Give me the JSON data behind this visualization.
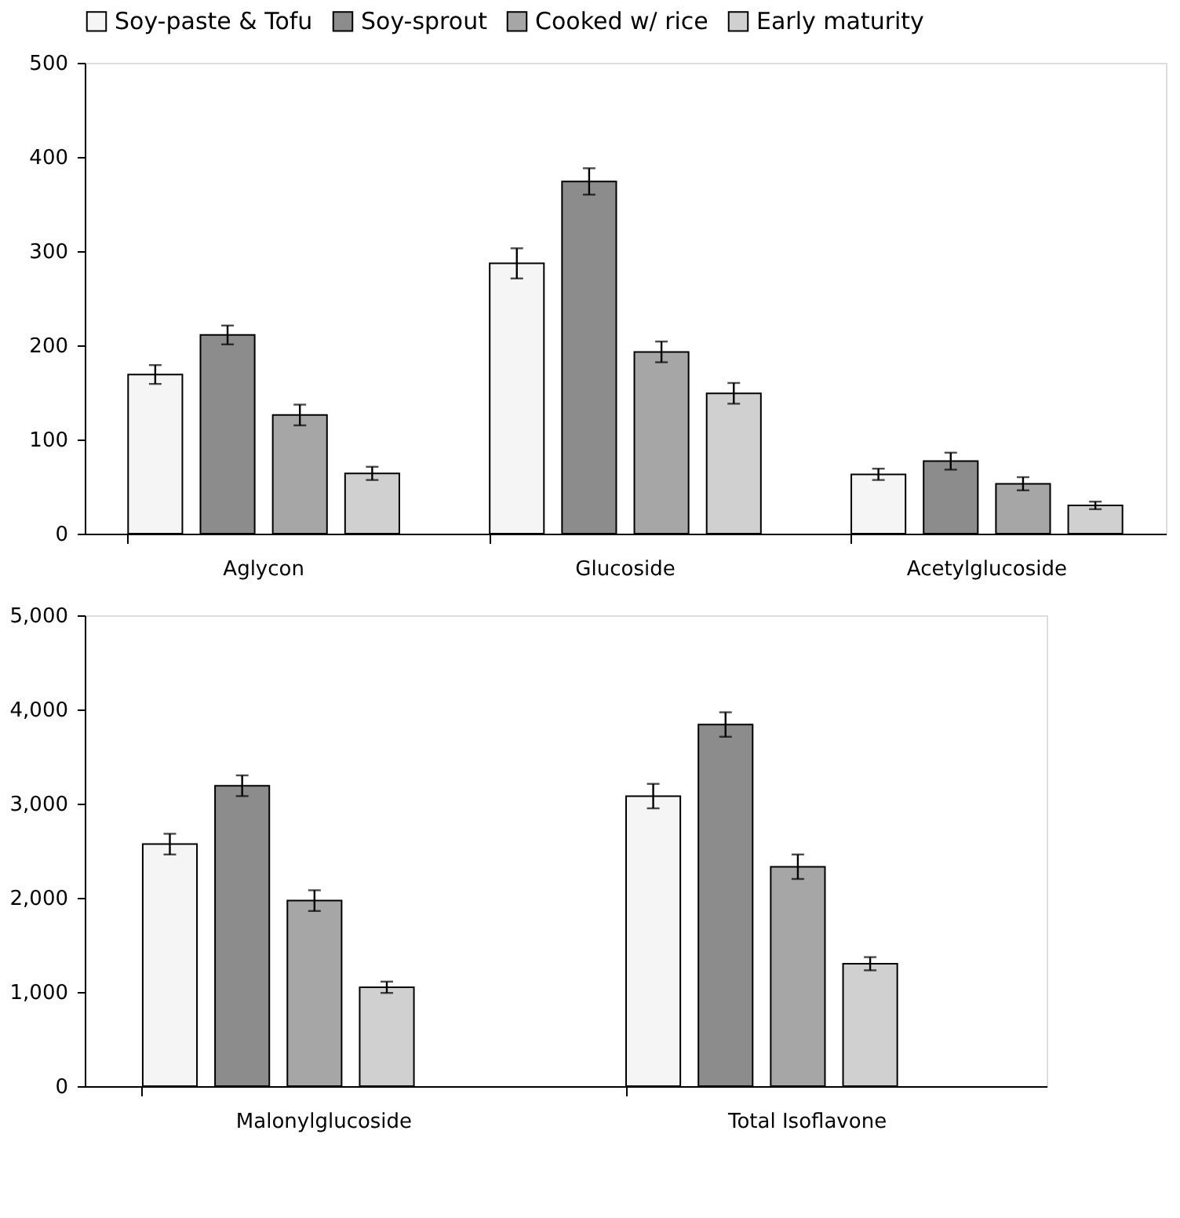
{
  "chart_data": [
    {
      "type": "bar",
      "categories": [
        "Aglycon",
        "Glucoside",
        "Acetylglucoside"
      ],
      "ylim": [
        0,
        500
      ],
      "yticks": [
        0,
        100,
        200,
        300,
        400,
        500
      ],
      "grid": false,
      "legend": "top",
      "series": [
        {
          "name": "Soy-paste & Tofu",
          "color": "#f5f5f5",
          "values": [
            169,
            287,
            63
          ],
          "errors": [
            10,
            16,
            6
          ]
        },
        {
          "name": "Soy-sprout",
          "color": "#8c8c8c",
          "values": [
            211,
            374,
            77
          ],
          "errors": [
            10,
            14,
            9
          ]
        },
        {
          "name": "Cooked w/ rice",
          "color": "#a6a6a6",
          "values": [
            126,
            193,
            53
          ],
          "errors": [
            11,
            11,
            7
          ]
        },
        {
          "name": "Early maturity",
          "color": "#d0d0d0",
          "values": [
            64,
            149,
            30
          ],
          "errors": [
            7,
            11,
            4
          ]
        }
      ]
    },
    {
      "type": "bar",
      "categories": [
        "Malonylglucoside",
        "Total Isoflavone"
      ],
      "ylim": [
        0,
        5000
      ],
      "yticks": [
        {
          "value": 0,
          "label": "0"
        },
        {
          "value": 1000,
          "label": "1,000"
        },
        {
          "value": 2000,
          "label": "2,000"
        },
        {
          "value": 3000,
          "label": "3,000"
        },
        {
          "value": 4000,
          "label": "4,000"
        },
        {
          "value": 5000,
          "label": "5,000"
        }
      ],
      "grid": false,
      "legend": false,
      "series": [
        {
          "color": "#f5f5f5",
          "values": [
            2570,
            3080
          ],
          "errors": [
            110,
            130
          ]
        },
        {
          "color": "#8c8c8c",
          "values": [
            3190,
            3840
          ],
          "errors": [
            110,
            130
          ]
        },
        {
          "color": "#a6a6a6",
          "values": [
            1970,
            2330
          ],
          "errors": [
            110,
            130
          ]
        },
        {
          "color": "#d0d0d0",
          "values": [
            1050,
            1300
          ],
          "errors": [
            60,
            70
          ]
        }
      ]
    }
  ]
}
